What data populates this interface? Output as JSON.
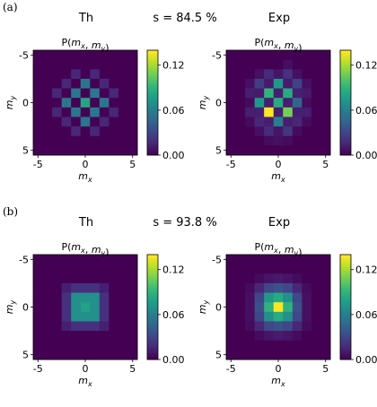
{
  "colormap": {
    "name": "viridis",
    "stops": [
      "#440154",
      "#482878",
      "#3e4989",
      "#31688e",
      "#26828e",
      "#1f9e89",
      "#35b779",
      "#6ece58",
      "#b5de2b",
      "#fde725"
    ]
  },
  "chart_data": [
    {
      "type": "heatmap",
      "panel_label": "(a)",
      "row_header": {
        "left": "Th",
        "center": "s = 84.5 %",
        "right": "Exp"
      },
      "subplots": [
        {
          "title": "P(m_x, m_y)",
          "xlabel": "m_x",
          "ylabel": "m_y",
          "xticks": [
            "-5",
            "0",
            "5"
          ],
          "yticks": [
            "-5",
            "0",
            "5"
          ],
          "x": [
            -5,
            -4,
            -3,
            -2,
            -1,
            0,
            1,
            2,
            3,
            4,
            5
          ],
          "y": [
            -5,
            -4,
            -3,
            -2,
            -1,
            0,
            1,
            2,
            3,
            4,
            5
          ],
          "vmin": 0,
          "vmax": 0.14,
          "colorbar_ticks": [
            "0.00",
            "0.06",
            "0.12"
          ],
          "colorbar_tick_values": [
            0,
            0.06,
            0.12
          ],
          "values": [
            [
              0,
              0,
              0,
              0,
              0,
              0,
              0,
              0,
              0,
              0,
              0
            ],
            [
              0,
              0,
              0,
              0,
              0,
              0,
              0,
              0,
              0,
              0,
              0
            ],
            [
              0,
              0,
              0,
              0,
              0.015,
              0,
              0.015,
              0,
              0,
              0,
              0
            ],
            [
              0,
              0,
              0,
              0.015,
              0,
              0.055,
              0,
              0.015,
              0,
              0,
              0
            ],
            [
              0,
              0,
              0.015,
              0,
              0.055,
              0,
              0.055,
              0,
              0.015,
              0,
              0
            ],
            [
              0,
              0,
              0,
              0.055,
              0,
              0.082,
              0,
              0.055,
              0,
              0,
              0
            ],
            [
              0,
              0,
              0.015,
              0,
              0.055,
              0,
              0.055,
              0,
              0.015,
              0,
              0
            ],
            [
              0,
              0,
              0,
              0.015,
              0,
              0.055,
              0,
              0.015,
              0,
              0,
              0
            ],
            [
              0,
              0,
              0,
              0,
              0.015,
              0,
              0.015,
              0,
              0,
              0,
              0
            ],
            [
              0,
              0,
              0,
              0,
              0,
              0,
              0,
              0,
              0,
              0,
              0
            ],
            [
              0,
              0,
              0,
              0,
              0,
              0,
              0,
              0,
              0,
              0,
              0
            ]
          ]
        },
        {
          "title": "P(m_x, m_y)",
          "xlabel": "m_x",
          "ylabel": "m_y",
          "xticks": [
            "-5",
            "0",
            "5"
          ],
          "yticks": [
            "-5",
            "0",
            "5"
          ],
          "x": [
            -5,
            -4,
            -3,
            -2,
            -1,
            0,
            1,
            2,
            3,
            4,
            5
          ],
          "y": [
            -5,
            -4,
            -3,
            -2,
            -1,
            0,
            1,
            2,
            3,
            4,
            5
          ],
          "vmin": 0,
          "vmax": 0.14,
          "colorbar_ticks": [
            "0.00",
            "0.06",
            "0.12"
          ],
          "colorbar_tick_values": [
            0,
            0.06,
            0.12
          ],
          "values": [
            [
              0,
              0,
              0,
              0,
              0,
              0,
              0,
              0,
              0,
              0,
              0
            ],
            [
              0,
              0,
              0,
              0,
              0,
              0,
              0.005,
              0,
              0,
              0,
              0
            ],
            [
              0,
              0,
              0,
              0.006,
              0.018,
              0.008,
              0.02,
              0.006,
              0,
              0,
              0
            ],
            [
              0,
              0,
              0.006,
              0.025,
              0.01,
              0.075,
              0.01,
              0.028,
              0.006,
              0,
              0
            ],
            [
              0,
              0,
              0.012,
              0.01,
              0.09,
              0.012,
              0.085,
              0.012,
              0.01,
              0,
              0
            ],
            [
              0,
              0,
              0.004,
              0.075,
              0.012,
              0.085,
              0.012,
              0.045,
              0.004,
              0,
              0
            ],
            [
              0,
              0,
              0.012,
              0.012,
              0.14,
              0.012,
              0.11,
              0.012,
              0.012,
              0,
              0
            ],
            [
              0,
              0,
              0.004,
              0.015,
              0.012,
              0.06,
              0.012,
              0.015,
              0.004,
              0,
              0
            ],
            [
              0,
              0,
              0,
              0.006,
              0.018,
              0.008,
              0.022,
              0.004,
              0,
              0,
              0
            ],
            [
              0,
              0,
              0,
              0,
              0.004,
              0.006,
              0.004,
              0,
              0,
              0,
              0
            ],
            [
              0,
              0,
              0,
              0,
              0,
              0,
              0,
              0,
              0,
              0,
              0
            ]
          ]
        }
      ]
    },
    {
      "type": "heatmap",
      "panel_label": "(b)",
      "row_header": {
        "left": "Th",
        "center": "s = 93.8 %",
        "right": "Exp"
      },
      "subplots": [
        {
          "title": "P(m_x, m_y)",
          "xlabel": "m_x",
          "ylabel": "m_y",
          "xticks": [
            "-5",
            "0",
            "5"
          ],
          "yticks": [
            "-5",
            "0",
            "5"
          ],
          "x": [
            -5,
            -4,
            -3,
            -2,
            -1,
            0,
            1,
            2,
            3,
            4,
            5
          ],
          "y": [
            -5,
            -4,
            -3,
            -2,
            -1,
            0,
            1,
            2,
            3,
            4,
            5
          ],
          "vmin": 0,
          "vmax": 0.14,
          "colorbar_ticks": [
            "0.00",
            "0.06",
            "0.12"
          ],
          "colorbar_tick_values": [
            0,
            0.06,
            0.12
          ],
          "values": [
            [
              0,
              0,
              0,
              0,
              0,
              0,
              0,
              0,
              0,
              0,
              0
            ],
            [
              0,
              0,
              0,
              0,
              0,
              0,
              0,
              0,
              0,
              0,
              0
            ],
            [
              0,
              0,
              0,
              0,
              0,
              0,
              0,
              0,
              0,
              0,
              0
            ],
            [
              0,
              0,
              0,
              0.012,
              0.02,
              0.02,
              0.02,
              0.012,
              0,
              0,
              0
            ],
            [
              0,
              0,
              0,
              0.02,
              0.07,
              0.07,
              0.07,
              0.02,
              0,
              0,
              0
            ],
            [
              0,
              0,
              0,
              0.02,
              0.07,
              0.08,
              0.07,
              0.02,
              0,
              0,
              0
            ],
            [
              0,
              0,
              0,
              0.02,
              0.07,
              0.07,
              0.07,
              0.02,
              0,
              0,
              0
            ],
            [
              0,
              0,
              0,
              0.012,
              0.02,
              0.02,
              0.02,
              0.012,
              0,
              0,
              0
            ],
            [
              0,
              0,
              0,
              0,
              0,
              0,
              0,
              0,
              0,
              0,
              0
            ],
            [
              0,
              0,
              0,
              0,
              0,
              0,
              0,
              0,
              0,
              0,
              0
            ],
            [
              0,
              0,
              0,
              0,
              0,
              0,
              0,
              0,
              0,
              0,
              0
            ]
          ]
        },
        {
          "title": "P(m_x, m_y)",
          "xlabel": "m_x",
          "ylabel": "m_y",
          "xticks": [
            "-5",
            "0",
            "5"
          ],
          "yticks": [
            "-5",
            "0",
            "5"
          ],
          "x": [
            -5,
            -4,
            -3,
            -2,
            -1,
            0,
            1,
            2,
            3,
            4,
            5
          ],
          "y": [
            -5,
            -4,
            -3,
            -2,
            -1,
            0,
            1,
            2,
            3,
            4,
            5
          ],
          "vmin": 0,
          "vmax": 0.14,
          "colorbar_ticks": [
            "0.00",
            "0.06",
            "0.12"
          ],
          "colorbar_tick_values": [
            0,
            0.06,
            0.12
          ],
          "values": [
            [
              0,
              0,
              0,
              0,
              0,
              0,
              0,
              0,
              0,
              0,
              0
            ],
            [
              0,
              0,
              0,
              0,
              0,
              0,
              0,
              0,
              0,
              0,
              0
            ],
            [
              0,
              0,
              0,
              0.004,
              0.008,
              0.01,
              0.008,
              0.004,
              0,
              0,
              0
            ],
            [
              0,
              0,
              0.004,
              0.015,
              0.03,
              0.035,
              0.03,
              0.015,
              0.004,
              0,
              0
            ],
            [
              0,
              0,
              0.006,
              0.03,
              0.075,
              0.085,
              0.07,
              0.03,
              0.006,
              0,
              0
            ],
            [
              0,
              0,
              0.006,
              0.035,
              0.09,
              0.14,
              0.09,
              0.035,
              0.006,
              0,
              0
            ],
            [
              0,
              0,
              0.006,
              0.03,
              0.07,
              0.085,
              0.07,
              0.03,
              0.006,
              0,
              0
            ],
            [
              0,
              0,
              0.004,
              0.015,
              0.03,
              0.035,
              0.03,
              0.015,
              0.004,
              0,
              0
            ],
            [
              0,
              0,
              0,
              0.004,
              0.008,
              0.01,
              0.008,
              0.004,
              0,
              0,
              0
            ],
            [
              0,
              0,
              0,
              0,
              0,
              0,
              0,
              0,
              0,
              0,
              0
            ],
            [
              0,
              0,
              0,
              0,
              0,
              0,
              0,
              0,
              0,
              0,
              0
            ]
          ]
        }
      ]
    }
  ]
}
